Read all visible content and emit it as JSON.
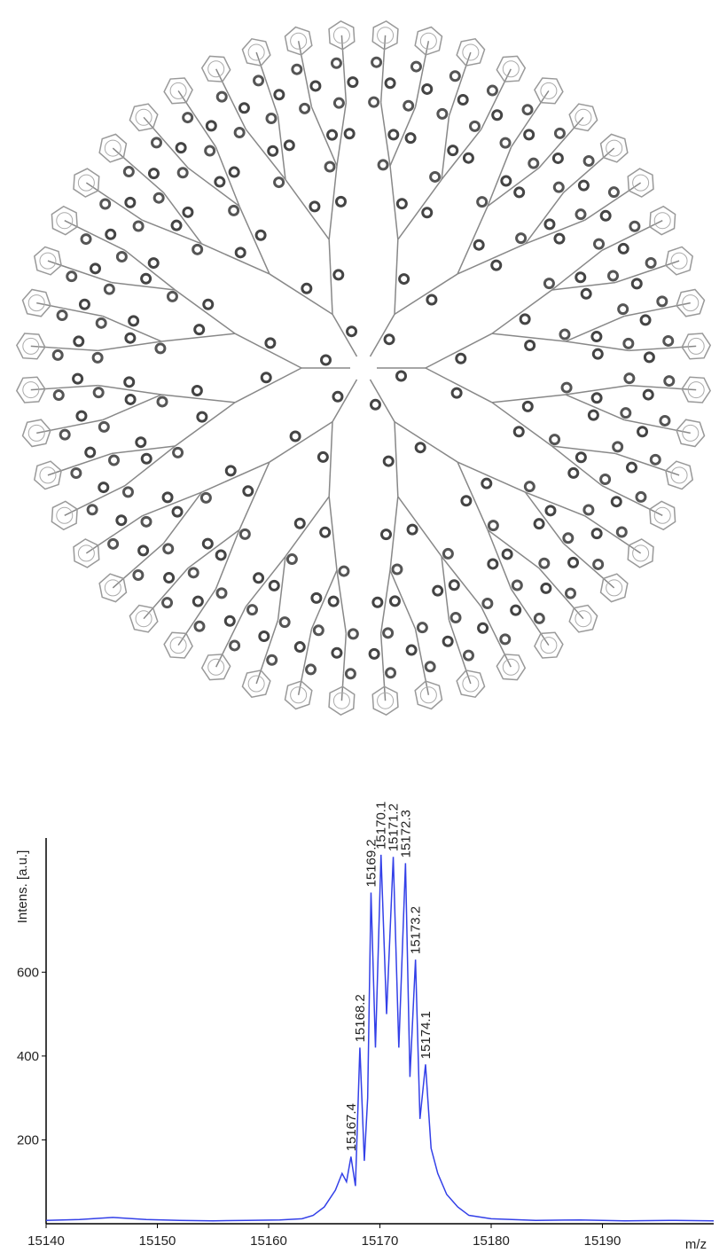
{
  "chart_data": {
    "type": "line",
    "ylabel": "Intens. [a.u.]",
    "xlabel": "m/z",
    "xlim": [
      15140,
      15200
    ],
    "xticks": [
      15140,
      15150,
      15160,
      15170,
      15180,
      15190
    ],
    "ylim": [
      0,
      920
    ],
    "yticks": [
      200,
      400,
      600
    ],
    "series": [
      {
        "color": "#3340e8",
        "x": [
          15140,
          15143,
          15146,
          15149,
          15152,
          15155,
          15158,
          15161,
          15163,
          15164,
          15165,
          15166,
          15166.6,
          15167,
          15167.4,
          15167.8,
          15168.2,
          15168.6,
          15168.9,
          15169.2,
          15169.6,
          15170.1,
          15170.6,
          15171.2,
          15171.7,
          15172.3,
          15172.7,
          15173.2,
          15173.6,
          15174.1,
          15174.6,
          15175.2,
          15176,
          15177,
          15178,
          15180,
          15184,
          15188,
          15192,
          15196,
          15200
        ],
        "values": [
          8,
          10,
          15,
          10,
          8,
          7,
          8,
          9,
          12,
          20,
          40,
          80,
          120,
          100,
          160,
          90,
          420,
          150,
          300,
          790,
          420,
          880,
          500,
          875,
          420,
          860,
          350,
          630,
          250,
          380,
          180,
          120,
          70,
          40,
          20,
          12,
          8,
          9,
          7,
          8,
          7
        ]
      }
    ],
    "peaks": [
      {
        "x": 15167.4,
        "y": 160
      },
      {
        "x": 15168.2,
        "y": 420
      },
      {
        "x": 15169.2,
        "y": 790
      },
      {
        "x": 15170.1,
        "y": 880
      },
      {
        "x": 15171.2,
        "y": 875
      },
      {
        "x": 15172.3,
        "y": 860
      },
      {
        "x": 15173.2,
        "y": 630
      },
      {
        "x": 15174.1,
        "y": 380
      }
    ]
  }
}
